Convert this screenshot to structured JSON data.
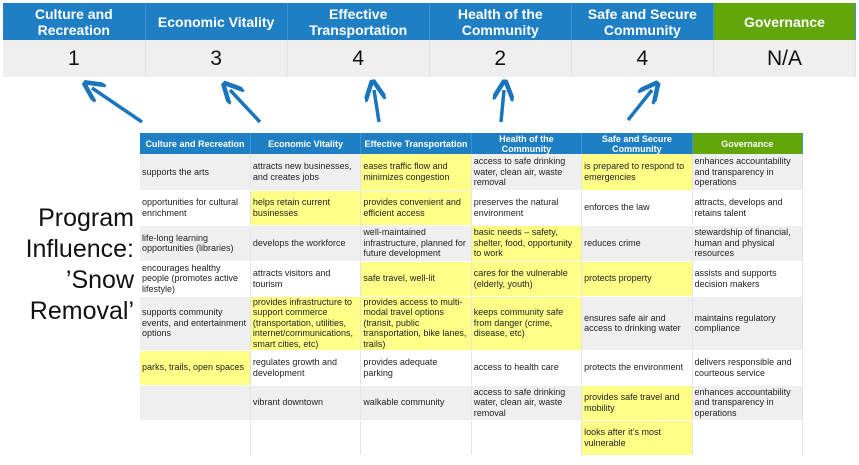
{
  "summary": {
    "headers": [
      "Culture and Recreation",
      "Economic Vitality",
      "Effective Transportation",
      "Health of the Community",
      "Safe and Secure Community",
      "Governance"
    ],
    "scores": [
      "1",
      "3",
      "4",
      "2",
      "4",
      "N/A"
    ]
  },
  "program_label": {
    "lines": [
      "Program",
      "Influence:",
      "’Snow",
      "Removal’"
    ]
  },
  "colors": {
    "header_blue": "#1f7fc4",
    "governance_green": "#62a60a",
    "highlight_yellow": "#ffff88",
    "arrow_blue": "#1a75bc"
  },
  "matrix": {
    "headers": [
      "Culture and Recreation",
      "Economic Vitality",
      "Effective Transportation",
      "Health of the Community",
      "Safe and Secure Community",
      "Governance"
    ],
    "rows": [
      {
        "cells": [
          "supports the arts",
          "attracts new businesses, and creates jobs",
          "eases traffic flow and minimizes congestion",
          "access to safe drinking water, clean air, waste removal",
          "is prepared to respond to emergencies",
          "enhances accountability and transparency in operations"
        ],
        "highlighted": [
          false,
          false,
          true,
          false,
          true,
          false
        ]
      },
      {
        "cells": [
          "opportunities for cultural enrichment",
          "helps retain current businesses",
          "provides convenient and efficient access",
          "preserves the natural environment",
          "enforces the law",
          "attracts, develops and retains talent"
        ],
        "highlighted": [
          false,
          true,
          true,
          false,
          false,
          false
        ]
      },
      {
        "cells": [
          "life-long learning opportunities (libraries)",
          "develops the workforce",
          "well-maintained infrastructure, planned for future development",
          "basic needs – safety, shelter, food, opportunity to work",
          "reduces crime",
          "stewardship of financial, human and physical resources"
        ],
        "highlighted": [
          false,
          false,
          false,
          true,
          false,
          false
        ]
      },
      {
        "cells": [
          "encourages healthy people (promotes active lifestyle)",
          "attracts visitors and tourism",
          "safe travel, well-lit",
          "cares for the vulnerable (elderly, youth)",
          "protects property",
          "assists and supports decision makers"
        ],
        "highlighted": [
          false,
          false,
          true,
          true,
          true,
          false
        ]
      },
      {
        "cells": [
          "supports community events, and entertainment options",
          "provides infrastructure to support commerce (transportation, utilities, internet/communications, smart cities, etc)",
          "provides access to multi-modal travel options (transit, public transportation, bike lanes, trails)",
          "keeps community safe from danger (crime, disease, etc)",
          "ensures safe air and access to drinking water",
          "maintains regulatory compliance"
        ],
        "highlighted": [
          false,
          true,
          true,
          true,
          false,
          false
        ]
      },
      {
        "cells": [
          "parks, trails, open spaces",
          "regulates growth and development",
          "provides adequate parking",
          "access to health care",
          "protects the environment",
          "delivers responsible and courteous service"
        ],
        "highlighted": [
          true,
          false,
          false,
          false,
          false,
          false
        ]
      },
      {
        "cells": [
          "",
          "vibrant downtown",
          "walkable community",
          "access to safe drinking water, clean air, waste removal",
          "provides safe travel and mobility",
          "enhances accountability and transparency in operations"
        ],
        "highlighted": [
          false,
          false,
          false,
          false,
          true,
          false
        ]
      },
      {
        "cells": [
          "",
          "",
          "",
          "",
          "looks after it’s most vulnerable",
          ""
        ],
        "highlighted": [
          false,
          false,
          false,
          false,
          true,
          false
        ]
      }
    ]
  }
}
